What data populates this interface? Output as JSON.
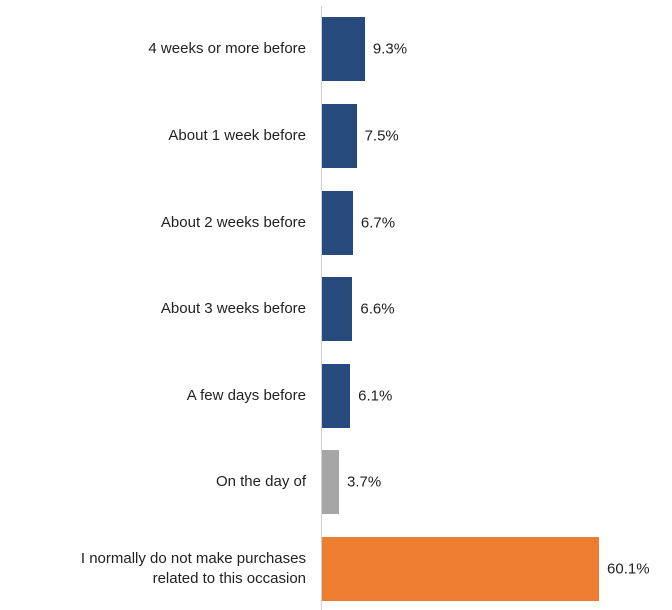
{
  "chart_data": {
    "type": "bar",
    "orientation": "horizontal",
    "categories": [
      "4 weeks or more before",
      "About 1 week before",
      "About 2 weeks before",
      "About 3 weeks before",
      "A few days before",
      "On the day of",
      "I normally do not make purchases\nrelated to this occasion"
    ],
    "values": [
      9.3,
      7.5,
      6.7,
      6.6,
      6.1,
      3.7,
      60.1
    ],
    "value_labels": [
      "9.3%",
      "7.5%",
      "6.7%",
      "6.6%",
      "6.1%",
      "3.7%",
      "60.1%"
    ],
    "colors": [
      "#264a7c",
      "#264a7c",
      "#264a7c",
      "#264a7c",
      "#264a7c",
      "#a6a6a6",
      "#ed7d31"
    ]
  }
}
